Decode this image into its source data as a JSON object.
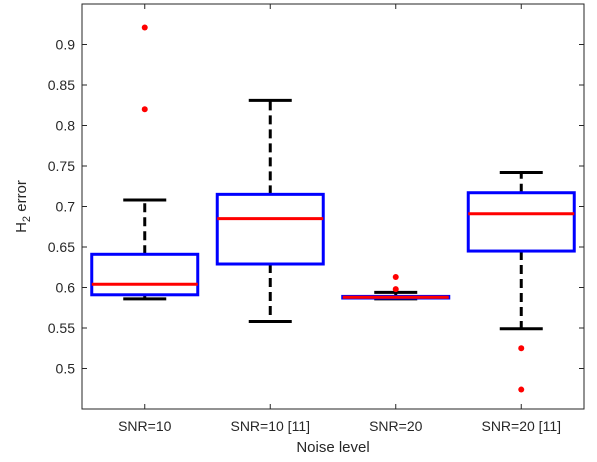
{
  "chart_data": {
    "type": "box",
    "title": "",
    "xlabel": "Noise level",
    "ylabel": "H",
    "ylabel_subscript": "2",
    "ylabel_suffix": " error",
    "ylim": [
      0.45,
      0.95
    ],
    "yticks": [
      0.5,
      0.55,
      0.6,
      0.65,
      0.7,
      0.75,
      0.8,
      0.85,
      0.9
    ],
    "ytick_labels": [
      "0.5",
      "0.55",
      "0.6",
      "0.65",
      "0.7",
      "0.75",
      "0.8",
      "0.85",
      "0.9"
    ],
    "grid": false,
    "categories": [
      "SNR=10",
      "SNR=10 [11]",
      "SNR=20",
      "SNR=20 [11]"
    ],
    "boxes": [
      {
        "category": "SNR=10",
        "whisker_low": 0.586,
        "q1": 0.591,
        "median": 0.604,
        "q3": 0.641,
        "whisker_high": 0.708,
        "outliers": [
          0.82,
          0.921
        ]
      },
      {
        "category": "SNR=10 [11]",
        "whisker_low": 0.558,
        "q1": 0.629,
        "median": 0.685,
        "q3": 0.715,
        "whisker_high": 0.831,
        "outliers": []
      },
      {
        "category": "SNR=20",
        "whisker_low": 0.586,
        "q1": 0.587,
        "median": 0.588,
        "q3": 0.589,
        "whisker_high": 0.594,
        "outliers": [
          0.598,
          0.613
        ]
      },
      {
        "category": "SNR=20 [11]",
        "whisker_low": 0.549,
        "q1": 0.645,
        "median": 0.691,
        "q3": 0.717,
        "whisker_high": 0.742,
        "outliers": [
          0.525,
          0.474
        ]
      }
    ],
    "colors": {
      "box": "#0000ff",
      "median": "#ff0000",
      "whisker": "#000000",
      "outlier": "#ff0000",
      "axis": "#262626"
    }
  }
}
